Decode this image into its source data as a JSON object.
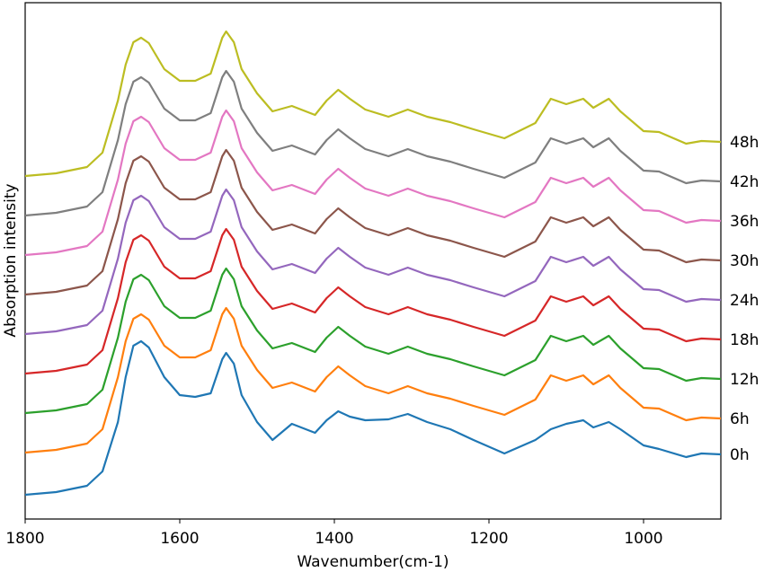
{
  "chart_data": {
    "type": "line",
    "xlabel": "Wavenumber(cm-1)",
    "ylabel": "Absorption intensity",
    "xlim": [
      1800,
      900
    ],
    "xticks": [
      1800,
      1600,
      1400,
      1200,
      1000
    ],
    "ylim": [
      0,
      575
    ],
    "x": [
      1800,
      1760,
      1720,
      1700,
      1680,
      1670,
      1660,
      1650,
      1640,
      1620,
      1600,
      1580,
      1560,
      1545,
      1540,
      1530,
      1520,
      1500,
      1480,
      1455,
      1425,
      1410,
      1395,
      1380,
      1360,
      1330,
      1305,
      1280,
      1250,
      1220,
      1180,
      1140,
      1120,
      1100,
      1078,
      1065,
      1045,
      1030,
      1000,
      980,
      945,
      925,
      900
    ],
    "series": [
      {
        "name": "0h",
        "color": "#1f77b4",
        "values": [
          27,
          30,
          37,
          53,
          108,
          158,
          193,
          198,
          191,
          158,
          138,
          136,
          140,
          178,
          185,
          173,
          138,
          108,
          88,
          106,
          96,
          110,
          120,
          114,
          110,
          111,
          117,
          108,
          100,
          88,
          73,
          88,
          100,
          106,
          110,
          102,
          108,
          100,
          82,
          78,
          69,
          73,
          72
        ]
      },
      {
        "name": "6h",
        "color": "#ff7f0e",
        "values": [
          74,
          77,
          84,
          100,
          158,
          198,
          223,
          228,
          222,
          193,
          180,
          180,
          188,
          228,
          235,
          223,
          193,
          166,
          146,
          152,
          142,
          158,
          170,
          160,
          148,
          140,
          148,
          140,
          134,
          126,
          116,
          133,
          160,
          154,
          160,
          150,
          160,
          146,
          124,
          123,
          110,
          113,
          112
        ]
      },
      {
        "name": "12h",
        "color": "#2ca02c",
        "values": [
          118,
          121,
          128,
          144,
          202,
          242,
          267,
          272,
          266,
          237,
          224,
          224,
          232,
          272,
          279,
          267,
          237,
          210,
          190,
          196,
          186,
          202,
          214,
          204,
          192,
          184,
          192,
          184,
          178,
          170,
          160,
          177,
          204,
          198,
          204,
          194,
          204,
          190,
          168,
          167,
          154,
          157,
          156
        ]
      },
      {
        "name": "18h",
        "color": "#d62728",
        "values": [
          162,
          165,
          172,
          188,
          246,
          286,
          311,
          316,
          310,
          281,
          268,
          268,
          276,
          316,
          323,
          311,
          281,
          254,
          234,
          240,
          230,
          246,
          258,
          248,
          236,
          228,
          236,
          228,
          222,
          214,
          204,
          221,
          248,
          242,
          248,
          238,
          248,
          234,
          212,
          211,
          198,
          201,
          200
        ]
      },
      {
        "name": "24h",
        "color": "#9467bd",
        "values": [
          206,
          209,
          216,
          232,
          290,
          330,
          355,
          360,
          354,
          325,
          312,
          312,
          320,
          360,
          367,
          355,
          325,
          298,
          278,
          284,
          274,
          290,
          302,
          292,
          280,
          272,
          280,
          272,
          266,
          258,
          248,
          265,
          292,
          286,
          292,
          282,
          292,
          278,
          256,
          255,
          242,
          245,
          244
        ]
      },
      {
        "name": "30h",
        "color": "#8c564b",
        "values": [
          250,
          253,
          260,
          276,
          334,
          374,
          399,
          404,
          398,
          369,
          356,
          356,
          364,
          404,
          411,
          399,
          369,
          342,
          322,
          328,
          318,
          334,
          346,
          336,
          324,
          316,
          324,
          316,
          310,
          302,
          292,
          309,
          336,
          330,
          336,
          326,
          336,
          322,
          300,
          299,
          286,
          289,
          288
        ]
      },
      {
        "name": "36h",
        "color": "#e377c2",
        "values": [
          294,
          297,
          304,
          320,
          378,
          418,
          443,
          448,
          442,
          413,
          400,
          400,
          408,
          448,
          455,
          443,
          413,
          386,
          366,
          372,
          362,
          378,
          390,
          380,
          368,
          360,
          368,
          360,
          354,
          346,
          336,
          353,
          380,
          374,
          380,
          370,
          380,
          366,
          344,
          343,
          330,
          333,
          332
        ]
      },
      {
        "name": "42h",
        "color": "#7f7f7f",
        "values": [
          338,
          341,
          348,
          364,
          422,
          462,
          487,
          492,
          486,
          457,
          444,
          444,
          452,
          492,
          499,
          487,
          457,
          430,
          410,
          416,
          406,
          422,
          434,
          424,
          412,
          404,
          412,
          404,
          398,
          390,
          380,
          397,
          424,
          418,
          424,
          414,
          424,
          410,
          388,
          387,
          374,
          377,
          376
        ]
      },
      {
        "name": "48h",
        "color": "#bcbd22",
        "values": [
          382,
          385,
          392,
          408,
          466,
          506,
          531,
          536,
          530,
          501,
          488,
          488,
          496,
          536,
          543,
          531,
          501,
          474,
          454,
          460,
          450,
          466,
          478,
          468,
          456,
          448,
          456,
          448,
          442,
          434,
          424,
          441,
          468,
          462,
          468,
          458,
          468,
          454,
          432,
          431,
          418,
          421,
          420
        ]
      }
    ]
  }
}
